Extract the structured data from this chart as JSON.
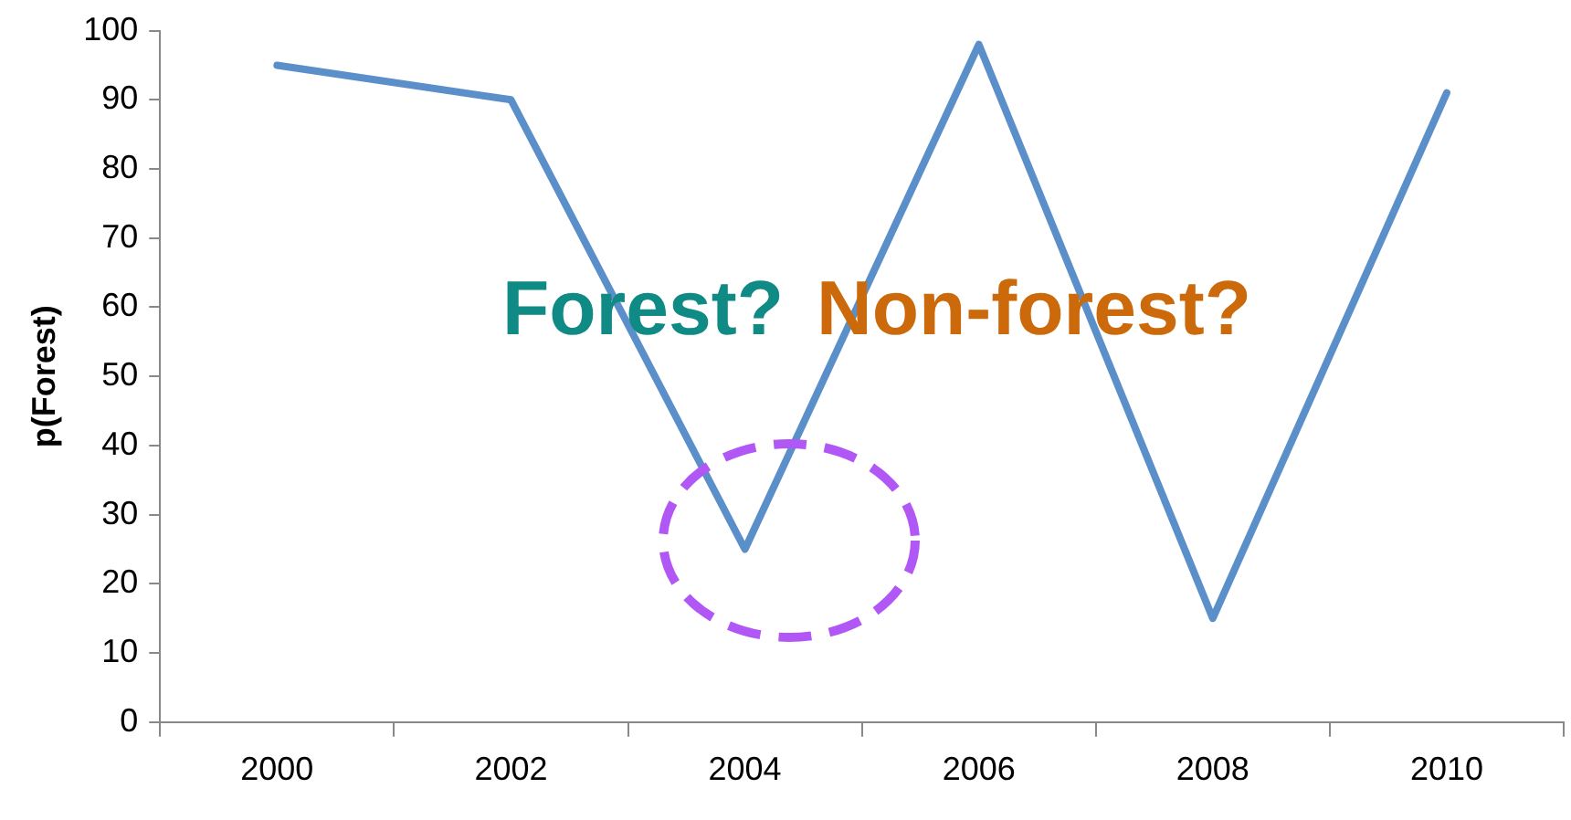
{
  "chart_data": {
    "type": "line",
    "ylabel": "p(Forest)",
    "categories": [
      "2000",
      "2002",
      "2004",
      "2006",
      "2008",
      "2010"
    ],
    "series": [
      {
        "color": "#5b8fc9",
        "values": [
          95,
          90,
          25,
          98,
          15,
          91
        ]
      }
    ],
    "ylim": [
      0,
      100
    ],
    "yticks": [
      0,
      10,
      20,
      30,
      40,
      50,
      60,
      70,
      80,
      90,
      100
    ],
    "grid": false,
    "legend": false,
    "marker": "none",
    "line_style": "solid",
    "annotations": [
      "Forest?",
      "Non-forest?"
    ]
  }
}
